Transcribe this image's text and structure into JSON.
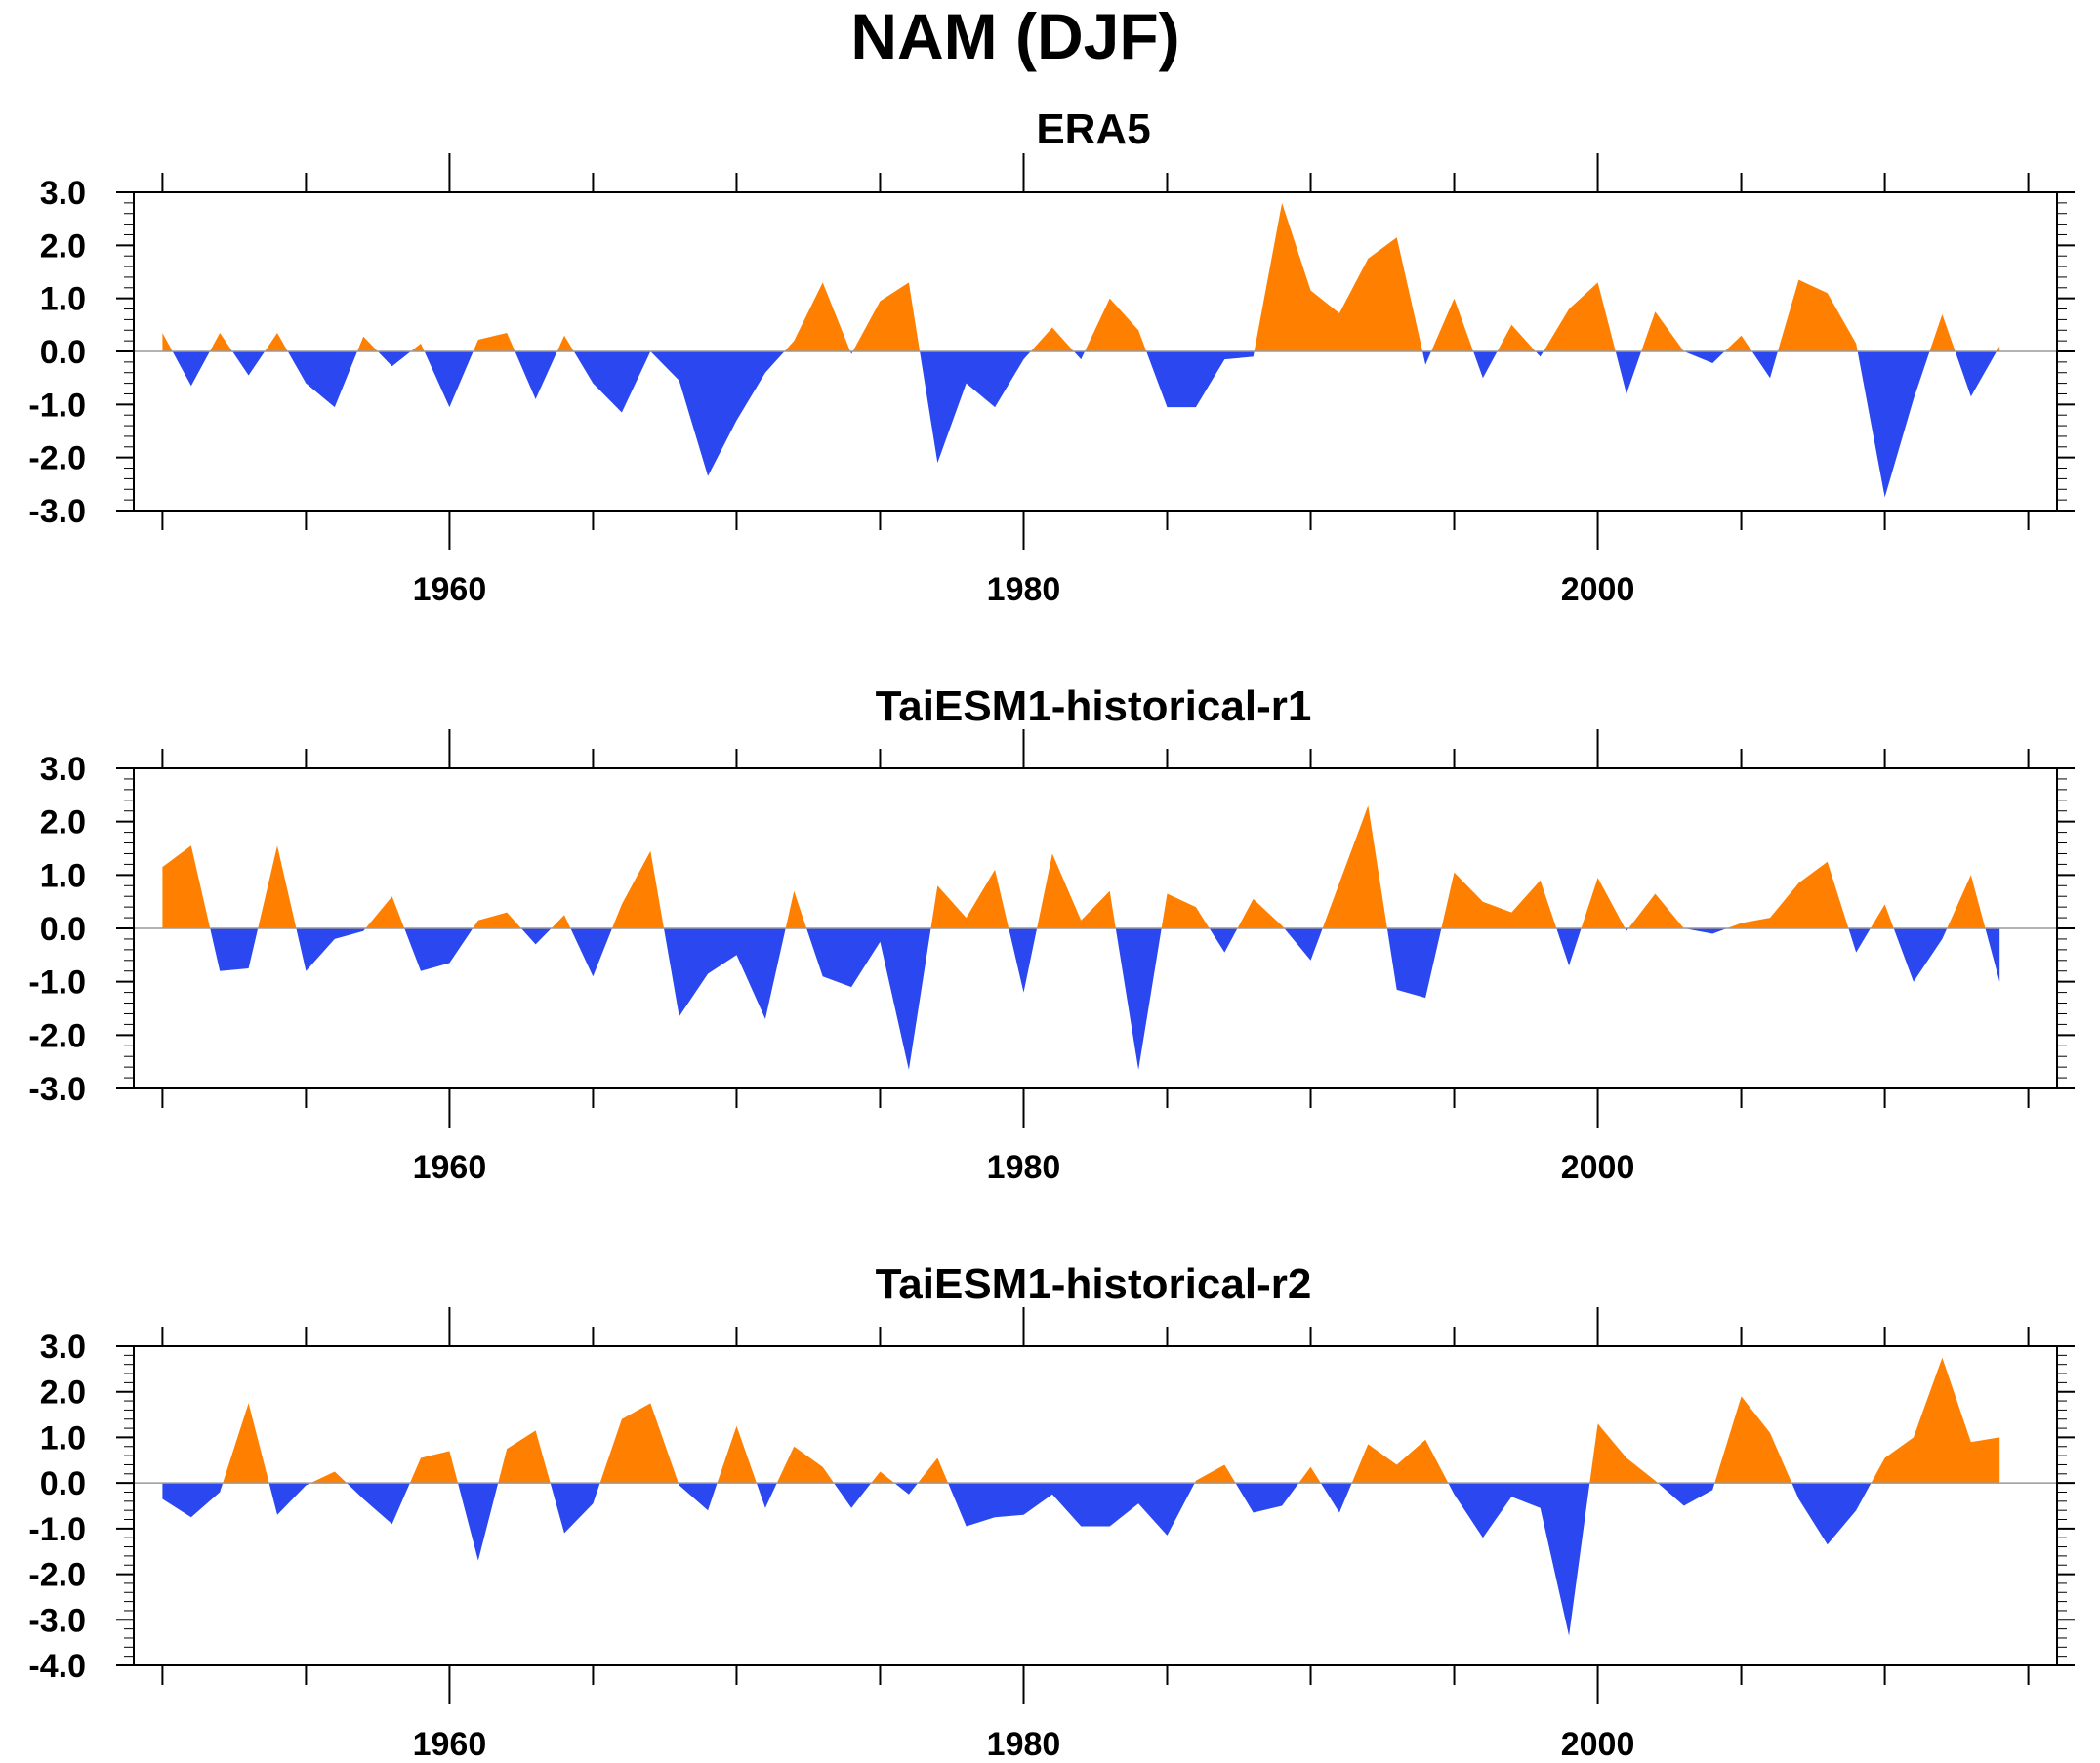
{
  "title": "NAM (DJF)",
  "colors": {
    "positive": "#ff8000",
    "negative": "#2a47f0",
    "axis": "#000000"
  },
  "chart_data": [
    {
      "type": "area",
      "title": "ERA5",
      "xlabel": "",
      "ylabel": "",
      "xlim": [
        1949,
        2016
      ],
      "ylim": [
        -3.0,
        3.0
      ],
      "yticks": [
        3.0,
        2.0,
        1.0,
        0.0,
        -1.0,
        -2.0,
        -3.0
      ],
      "yticklabels": [
        "3.0",
        "2.0",
        "1.0",
        "0.0",
        "-1.0",
        "-2.0",
        "-3.0"
      ],
      "xticklabels": [
        "1960",
        "1980",
        "2000"
      ],
      "grid": false,
      "x": [
        1950,
        1951,
        1952,
        1953,
        1954,
        1955,
        1956,
        1957,
        1958,
        1959,
        1960,
        1961,
        1962,
        1963,
        1964,
        1965,
        1966,
        1967,
        1968,
        1969,
        1970,
        1971,
        1972,
        1973,
        1974,
        1975,
        1976,
        1977,
        1978,
        1979,
        1980,
        1981,
        1982,
        1983,
        1984,
        1985,
        1986,
        1987,
        1988,
        1989,
        1990,
        1991,
        1992,
        1993,
        1994,
        1995,
        1996,
        1997,
        1998,
        1999,
        2000,
        2001,
        2002,
        2003,
        2004,
        2005,
        2006,
        2007,
        2008,
        2009,
        2010,
        2011,
        2012,
        2013,
        2014
      ],
      "values": [
        0.35,
        -0.65,
        0.35,
        -0.45,
        0.35,
        -0.6,
        -1.05,
        0.28,
        -0.28,
        0.15,
        -1.05,
        0.22,
        0.35,
        -0.9,
        0.3,
        -0.6,
        -1.15,
        0.0,
        -0.55,
        -2.35,
        -1.3,
        -0.4,
        0.2,
        1.3,
        -0.05,
        0.95,
        1.3,
        -2.1,
        -0.6,
        -1.05,
        -0.15,
        0.45,
        -0.15,
        1.0,
        0.4,
        -1.05,
        -1.05,
        -0.15,
        -0.1,
        2.8,
        1.15,
        0.72,
        1.75,
        2.15,
        -0.25,
        1.0,
        -0.5,
        0.5,
        -0.1,
        0.8,
        1.3,
        -0.8,
        0.75,
        0.0,
        -0.22,
        0.3,
        -0.5,
        1.35,
        1.1,
        0.15,
        -2.75,
        -0.9,
        0.7,
        -0.85,
        0.1
      ]
    },
    {
      "type": "area",
      "title": "TaiESM1-historical-r1",
      "xlabel": "",
      "ylabel": "",
      "xlim": [
        1949,
        2016
      ],
      "ylim": [
        -3.0,
        3.0
      ],
      "yticks": [
        3.0,
        2.0,
        1.0,
        0.0,
        -1.0,
        -2.0,
        -3.0
      ],
      "yticklabels": [
        "3.0",
        "2.0",
        "1.0",
        "0.0",
        "-1.0",
        "-2.0",
        "-3.0"
      ],
      "xticklabels": [
        "1960",
        "1980",
        "2000"
      ],
      "grid": false,
      "x": [
        1950,
        1951,
        1952,
        1953,
        1954,
        1955,
        1956,
        1957,
        1958,
        1959,
        1960,
        1961,
        1962,
        1963,
        1964,
        1965,
        1966,
        1967,
        1968,
        1969,
        1970,
        1971,
        1972,
        1973,
        1974,
        1975,
        1976,
        1977,
        1978,
        1979,
        1980,
        1981,
        1982,
        1983,
        1984,
        1985,
        1986,
        1987,
        1988,
        1989,
        1990,
        1991,
        1992,
        1993,
        1994,
        1995,
        1996,
        1997,
        1998,
        1999,
        2000,
        2001,
        2002,
        2003,
        2004,
        2005,
        2006,
        2007,
        2008,
        2009,
        2010,
        2011,
        2012,
        2013,
        2014
      ],
      "values": [
        1.15,
        1.55,
        -0.8,
        -0.75,
        1.55,
        -0.8,
        -0.2,
        -0.05,
        0.6,
        -0.8,
        -0.65,
        0.15,
        0.3,
        -0.3,
        0.25,
        -0.9,
        0.45,
        1.45,
        -1.65,
        -0.85,
        -0.5,
        -1.7,
        0.7,
        -0.9,
        -1.1,
        -0.25,
        -2.65,
        0.8,
        0.2,
        1.1,
        -1.2,
        1.4,
        0.15,
        0.7,
        -2.65,
        0.65,
        0.4,
        -0.45,
        0.55,
        0.05,
        -0.6,
        0.85,
        2.3,
        -1.15,
        -1.3,
        1.05,
        0.5,
        0.3,
        0.9,
        -0.7,
        0.95,
        -0.05,
        0.65,
        0.0,
        -0.1,
        0.1,
        0.2,
        0.85,
        1.25,
        -0.45,
        0.45,
        -1.0,
        -0.2,
        1.0,
        -1.0
      ]
    },
    {
      "type": "area",
      "title": "TaiESM1-historical-r2",
      "xlabel": "",
      "ylabel": "",
      "xlim": [
        1949,
        2016
      ],
      "ylim": [
        -4.0,
        3.0
      ],
      "yticks": [
        3.0,
        2.0,
        1.0,
        0.0,
        -1.0,
        -2.0,
        -3.0,
        -4.0
      ],
      "yticklabels": [
        "3.0",
        "2.0",
        "1.0",
        "0.0",
        "-1.0",
        "-2.0",
        "-3.0",
        "-4.0"
      ],
      "xticklabels": [
        "1960",
        "1980",
        "2000"
      ],
      "grid": false,
      "x": [
        1950,
        1951,
        1952,
        1953,
        1954,
        1955,
        1956,
        1957,
        1958,
        1959,
        1960,
        1961,
        1962,
        1963,
        1964,
        1965,
        1966,
        1967,
        1968,
        1969,
        1970,
        1971,
        1972,
        1973,
        1974,
        1975,
        1976,
        1977,
        1978,
        1979,
        1980,
        1981,
        1982,
        1983,
        1984,
        1985,
        1986,
        1987,
        1988,
        1989,
        1990,
        1991,
        1992,
        1993,
        1994,
        1995,
        1996,
        1997,
        1998,
        1999,
        2000,
        2001,
        2002,
        2003,
        2004,
        2005,
        2006,
        2007,
        2008,
        2009,
        2010,
        2011,
        2012,
        2013,
        2014
      ],
      "values": [
        -0.35,
        -0.75,
        -0.2,
        1.75,
        -0.7,
        -0.05,
        0.25,
        -0.35,
        -0.9,
        0.55,
        0.7,
        -1.7,
        0.75,
        1.15,
        -1.1,
        -0.45,
        1.4,
        1.75,
        -0.05,
        -0.6,
        1.25,
        -0.55,
        0.8,
        0.35,
        -0.55,
        0.25,
        -0.25,
        0.55,
        -0.95,
        -0.75,
        -0.7,
        -0.25,
        -0.95,
        -0.95,
        -0.45,
        -1.15,
        0.05,
        0.4,
        -0.65,
        -0.5,
        0.35,
        -0.65,
        0.85,
        0.4,
        0.95,
        -0.25,
        -1.2,
        -0.3,
        -0.55,
        -3.35,
        1.3,
        0.55,
        0.05,
        -0.5,
        -0.15,
        1.9,
        1.1,
        -0.35,
        -1.35,
        -0.6,
        0.55,
        1.0,
        2.75,
        0.9,
        1.0
      ]
    }
  ]
}
